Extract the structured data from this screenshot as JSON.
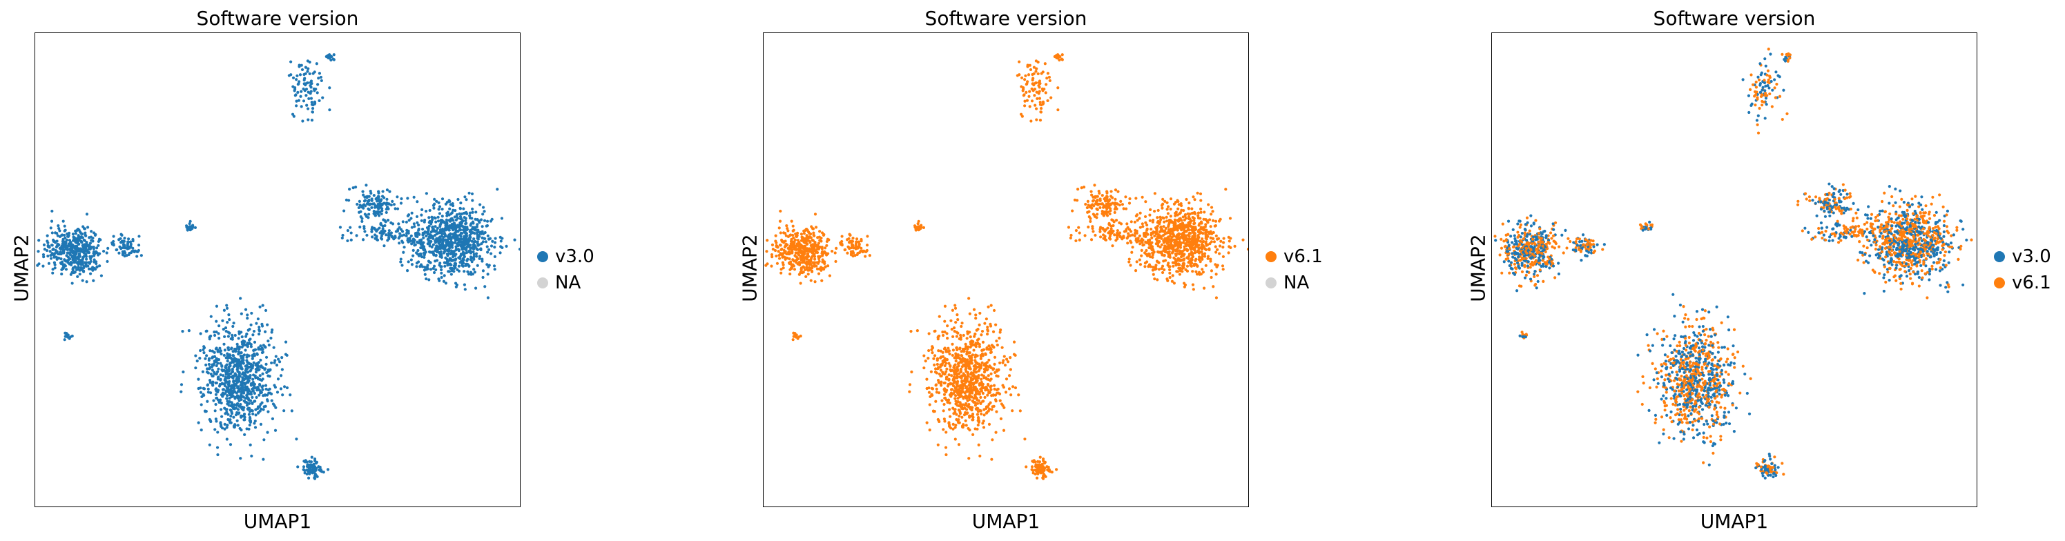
{
  "chart_data": [
    {
      "type": "scatter",
      "title": "Software version",
      "xlabel": "UMAP1",
      "ylabel": "UMAP2",
      "grid": false,
      "ticks": false,
      "legend_position": "right",
      "series": [
        {
          "name": "v3.0",
          "color": "#1f77b4",
          "values": "shown"
        },
        {
          "name": "NA",
          "color": "#d3d3d3",
          "values": "none"
        }
      ]
    },
    {
      "type": "scatter",
      "title": "Software version",
      "xlabel": "UMAP1",
      "ylabel": "UMAP2",
      "grid": false,
      "ticks": false,
      "legend_position": "right",
      "series": [
        {
          "name": "v6.1",
          "color": "#ff7f0e",
          "values": "shown"
        },
        {
          "name": "NA",
          "color": "#d3d3d3",
          "values": "none"
        }
      ]
    },
    {
      "type": "scatter",
      "title": "Software version",
      "xlabel": "UMAP1",
      "ylabel": "UMAP2",
      "grid": false,
      "ticks": false,
      "legend_position": "right",
      "series": [
        {
          "name": "v3.0",
          "color": "#1f77b4",
          "values": "shown"
        },
        {
          "name": "v6.1",
          "color": "#ff7f0e",
          "values": "shown"
        }
      ]
    }
  ]
}
